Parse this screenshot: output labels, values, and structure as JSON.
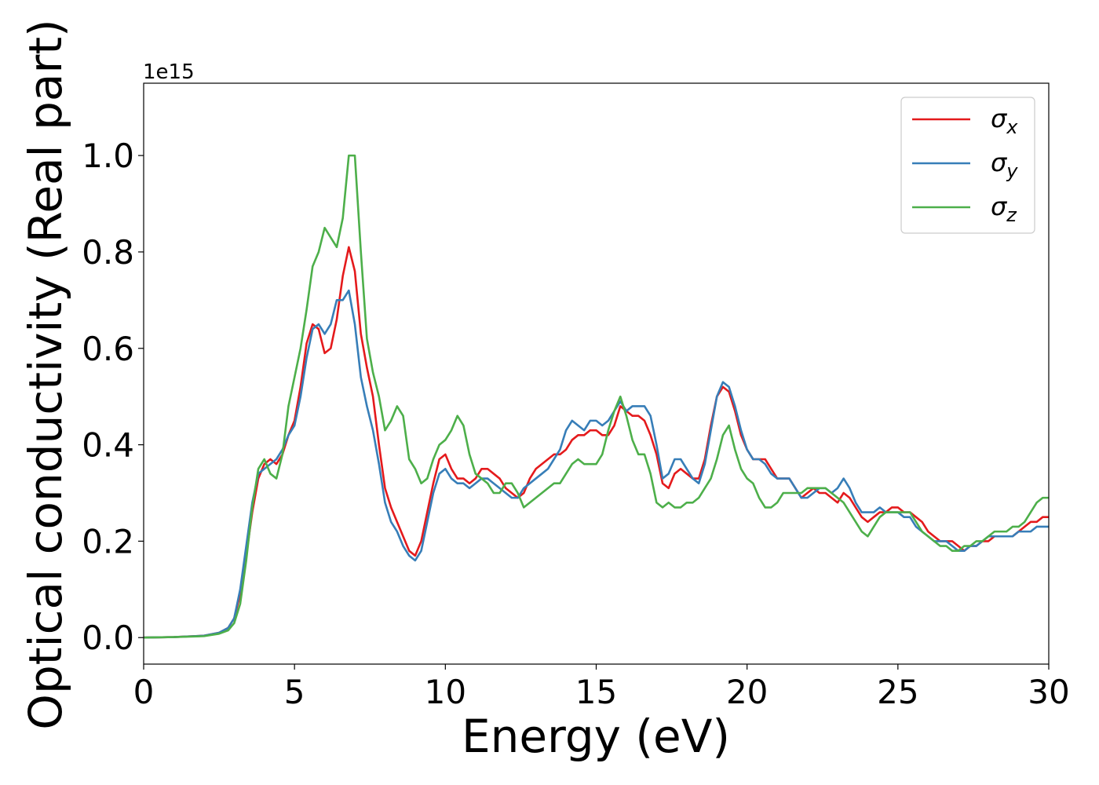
{
  "chart_data": {
    "type": "line",
    "xlabel": "Energy (eV)",
    "ylabel": "Optical conductivity (Real part)",
    "offset_label": "1e15",
    "xlim": [
      0,
      30
    ],
    "ylim": [
      -0.055,
      1.15
    ],
    "xticks": [
      0,
      5,
      10,
      15,
      20,
      25,
      30
    ],
    "xtick_labels": [
      "0",
      "5",
      "10",
      "15",
      "20",
      "25",
      "30"
    ],
    "yticks": [
      0.0,
      0.2,
      0.4,
      0.6,
      0.8,
      1.0
    ],
    "ytick_labels": [
      "0.0",
      "0.2",
      "0.4",
      "0.6",
      "0.8",
      "1.0"
    ],
    "legend_position": "upper right",
    "grid": false,
    "series": [
      {
        "name": "σx",
        "name_base": "σ",
        "name_sub": "x",
        "color": "#e41a1c",
        "x": [
          0,
          1,
          2,
          2.5,
          2.8,
          3.0,
          3.2,
          3.4,
          3.6,
          3.8,
          4.0,
          4.2,
          4.4,
          4.6,
          4.8,
          5.0,
          5.2,
          5.4,
          5.6,
          5.8,
          6.0,
          6.2,
          6.4,
          6.6,
          6.8,
          7.0,
          7.2,
          7.4,
          7.6,
          7.8,
          8.0,
          8.2,
          8.4,
          8.6,
          8.8,
          9.0,
          9.2,
          9.4,
          9.6,
          9.8,
          10.0,
          10.2,
          10.4,
          10.6,
          10.8,
          11.0,
          11.2,
          11.4,
          11.6,
          11.8,
          12.0,
          12.2,
          12.4,
          12.6,
          12.8,
          13.0,
          13.2,
          13.4,
          13.6,
          13.8,
          14.0,
          14.2,
          14.4,
          14.6,
          14.8,
          15.0,
          15.2,
          15.4,
          15.6,
          15.8,
          16.0,
          16.2,
          16.4,
          16.6,
          16.8,
          17.0,
          17.2,
          17.4,
          17.6,
          17.8,
          18.0,
          18.2,
          18.4,
          18.6,
          18.8,
          19.0,
          19.2,
          19.4,
          19.6,
          19.8,
          20.0,
          20.2,
          20.4,
          20.6,
          20.8,
          21.0,
          21.2,
          21.4,
          21.6,
          21.8,
          22.0,
          22.2,
          22.4,
          22.6,
          22.8,
          23.0,
          23.2,
          23.4,
          23.6,
          23.8,
          24.0,
          24.2,
          24.4,
          24.6,
          24.8,
          25.0,
          25.2,
          25.4,
          25.6,
          25.8,
          26.0,
          26.2,
          26.4,
          26.6,
          26.8,
          27.0,
          27.2,
          27.4,
          27.6,
          27.8,
          28.0,
          28.2,
          28.4,
          28.6,
          28.8,
          29.0,
          29.2,
          29.4,
          29.6,
          29.8,
          30.0
        ],
        "y": [
          0,
          0.001,
          0.004,
          0.01,
          0.02,
          0.04,
          0.09,
          0.17,
          0.26,
          0.33,
          0.36,
          0.37,
          0.36,
          0.38,
          0.42,
          0.45,
          0.52,
          0.61,
          0.65,
          0.64,
          0.59,
          0.6,
          0.66,
          0.75,
          0.81,
          0.76,
          0.63,
          0.56,
          0.5,
          0.4,
          0.31,
          0.27,
          0.24,
          0.21,
          0.18,
          0.17,
          0.2,
          0.26,
          0.32,
          0.37,
          0.38,
          0.35,
          0.33,
          0.33,
          0.32,
          0.33,
          0.35,
          0.35,
          0.34,
          0.33,
          0.31,
          0.3,
          0.29,
          0.3,
          0.33,
          0.35,
          0.36,
          0.37,
          0.38,
          0.38,
          0.39,
          0.41,
          0.42,
          0.42,
          0.43,
          0.43,
          0.42,
          0.42,
          0.44,
          0.48,
          0.47,
          0.46,
          0.46,
          0.45,
          0.42,
          0.38,
          0.32,
          0.31,
          0.34,
          0.35,
          0.34,
          0.33,
          0.33,
          0.37,
          0.44,
          0.5,
          0.52,
          0.51,
          0.47,
          0.42,
          0.39,
          0.37,
          0.37,
          0.37,
          0.35,
          0.33,
          0.33,
          0.33,
          0.31,
          0.29,
          0.3,
          0.31,
          0.3,
          0.3,
          0.29,
          0.28,
          0.3,
          0.29,
          0.27,
          0.25,
          0.24,
          0.25,
          0.26,
          0.26,
          0.27,
          0.27,
          0.26,
          0.26,
          0.25,
          0.24,
          0.22,
          0.21,
          0.2,
          0.2,
          0.2,
          0.19,
          0.18,
          0.19,
          0.19,
          0.2,
          0.2,
          0.21,
          0.21,
          0.21,
          0.21,
          0.22,
          0.23,
          0.24,
          0.24,
          0.25,
          0.25
        ]
      },
      {
        "name": "σy",
        "name_base": "σ",
        "name_sub": "y",
        "color": "#377eb8",
        "x": [
          0,
          1,
          2,
          2.5,
          2.8,
          3.0,
          3.2,
          3.4,
          3.6,
          3.8,
          4.0,
          4.2,
          4.4,
          4.6,
          4.8,
          5.0,
          5.2,
          5.4,
          5.6,
          5.8,
          6.0,
          6.2,
          6.4,
          6.6,
          6.8,
          7.0,
          7.2,
          7.4,
          7.6,
          7.8,
          8.0,
          8.2,
          8.4,
          8.6,
          8.8,
          9.0,
          9.2,
          9.4,
          9.6,
          9.8,
          10.0,
          10.2,
          10.4,
          10.6,
          10.8,
          11.0,
          11.2,
          11.4,
          11.6,
          11.8,
          12.0,
          12.2,
          12.4,
          12.6,
          12.8,
          13.0,
          13.2,
          13.4,
          13.6,
          13.8,
          14.0,
          14.2,
          14.4,
          14.6,
          14.8,
          15.0,
          15.2,
          15.4,
          15.6,
          15.8,
          16.0,
          16.2,
          16.4,
          16.6,
          16.8,
          17.0,
          17.2,
          17.4,
          17.6,
          17.8,
          18.0,
          18.2,
          18.4,
          18.6,
          18.8,
          19.0,
          19.2,
          19.4,
          19.6,
          19.8,
          20.0,
          20.2,
          20.4,
          20.6,
          20.8,
          21.0,
          21.2,
          21.4,
          21.6,
          21.8,
          22.0,
          22.2,
          22.4,
          22.6,
          22.8,
          23.0,
          23.2,
          23.4,
          23.6,
          23.8,
          24.0,
          24.2,
          24.4,
          24.6,
          24.8,
          25.0,
          25.2,
          25.4,
          25.6,
          25.8,
          26.0,
          26.2,
          26.4,
          26.6,
          26.8,
          27.0,
          27.2,
          27.4,
          27.6,
          27.8,
          28.0,
          28.2,
          28.4,
          28.6,
          28.8,
          29.0,
          29.2,
          29.4,
          29.6,
          29.8,
          30.0
        ],
        "y": [
          0,
          0.001,
          0.004,
          0.01,
          0.02,
          0.04,
          0.1,
          0.19,
          0.28,
          0.34,
          0.35,
          0.36,
          0.37,
          0.39,
          0.42,
          0.44,
          0.5,
          0.58,
          0.64,
          0.65,
          0.63,
          0.65,
          0.7,
          0.7,
          0.72,
          0.65,
          0.54,
          0.48,
          0.43,
          0.36,
          0.28,
          0.24,
          0.22,
          0.19,
          0.17,
          0.16,
          0.18,
          0.24,
          0.3,
          0.34,
          0.35,
          0.33,
          0.32,
          0.32,
          0.31,
          0.32,
          0.33,
          0.33,
          0.32,
          0.31,
          0.3,
          0.29,
          0.29,
          0.31,
          0.32,
          0.33,
          0.34,
          0.35,
          0.37,
          0.39,
          0.43,
          0.45,
          0.44,
          0.43,
          0.45,
          0.45,
          0.44,
          0.45,
          0.47,
          0.49,
          0.47,
          0.48,
          0.48,
          0.48,
          0.46,
          0.4,
          0.33,
          0.34,
          0.37,
          0.37,
          0.35,
          0.33,
          0.32,
          0.36,
          0.43,
          0.5,
          0.53,
          0.52,
          0.48,
          0.43,
          0.39,
          0.37,
          0.37,
          0.36,
          0.34,
          0.33,
          0.33,
          0.33,
          0.31,
          0.29,
          0.29,
          0.3,
          0.31,
          0.31,
          0.3,
          0.31,
          0.33,
          0.31,
          0.28,
          0.26,
          0.26,
          0.26,
          0.27,
          0.26,
          0.26,
          0.26,
          0.25,
          0.25,
          0.23,
          0.22,
          0.21,
          0.2,
          0.2,
          0.2,
          0.19,
          0.18,
          0.18,
          0.19,
          0.19,
          0.2,
          0.21,
          0.21,
          0.21,
          0.21,
          0.21,
          0.22,
          0.22,
          0.22,
          0.23,
          0.23,
          0.23
        ]
      },
      {
        "name": "σz",
        "name_base": "σ",
        "name_sub": "z",
        "color": "#4daf4a",
        "x": [
          0,
          1,
          2,
          2.5,
          2.8,
          3.0,
          3.2,
          3.4,
          3.6,
          3.8,
          4.0,
          4.2,
          4.4,
          4.6,
          4.8,
          5.0,
          5.2,
          5.4,
          5.6,
          5.8,
          6.0,
          6.2,
          6.4,
          6.6,
          6.8,
          7.0,
          7.2,
          7.4,
          7.6,
          7.8,
          8.0,
          8.2,
          8.4,
          8.6,
          8.8,
          9.0,
          9.2,
          9.4,
          9.6,
          9.8,
          10.0,
          10.2,
          10.4,
          10.6,
          10.8,
          11.0,
          11.2,
          11.4,
          11.6,
          11.8,
          12.0,
          12.2,
          12.4,
          12.6,
          12.8,
          13.0,
          13.2,
          13.4,
          13.6,
          13.8,
          14.0,
          14.2,
          14.4,
          14.6,
          14.8,
          15.0,
          15.2,
          15.4,
          15.6,
          15.8,
          16.0,
          16.2,
          16.4,
          16.6,
          16.8,
          17.0,
          17.2,
          17.4,
          17.6,
          17.8,
          18.0,
          18.2,
          18.4,
          18.6,
          18.8,
          19.0,
          19.2,
          19.4,
          19.6,
          19.8,
          20.0,
          20.2,
          20.4,
          20.6,
          20.8,
          21.0,
          21.2,
          21.4,
          21.6,
          21.8,
          22.0,
          22.2,
          22.4,
          22.6,
          22.8,
          23.0,
          23.2,
          23.4,
          23.6,
          23.8,
          24.0,
          24.2,
          24.4,
          24.6,
          24.8,
          25.0,
          25.2,
          25.4,
          25.6,
          25.8,
          26.0,
          26.2,
          26.4,
          26.6,
          26.8,
          27.0,
          27.2,
          27.4,
          27.6,
          27.8,
          28.0,
          28.2,
          28.4,
          28.6,
          28.8,
          29.0,
          29.2,
          29.4,
          29.6,
          29.8,
          30.0
        ],
        "y": [
          0,
          0.001,
          0.003,
          0.008,
          0.015,
          0.03,
          0.07,
          0.16,
          0.27,
          0.35,
          0.37,
          0.34,
          0.33,
          0.38,
          0.48,
          0.54,
          0.6,
          0.68,
          0.77,
          0.8,
          0.85,
          0.83,
          0.81,
          0.87,
          1.0,
          1.0,
          0.8,
          0.62,
          0.55,
          0.5,
          0.43,
          0.45,
          0.48,
          0.46,
          0.37,
          0.35,
          0.32,
          0.33,
          0.37,
          0.4,
          0.41,
          0.43,
          0.46,
          0.44,
          0.38,
          0.34,
          0.33,
          0.32,
          0.3,
          0.3,
          0.32,
          0.32,
          0.3,
          0.27,
          0.28,
          0.29,
          0.3,
          0.31,
          0.32,
          0.32,
          0.34,
          0.36,
          0.37,
          0.36,
          0.36,
          0.36,
          0.38,
          0.43,
          0.47,
          0.5,
          0.46,
          0.41,
          0.38,
          0.38,
          0.34,
          0.28,
          0.27,
          0.28,
          0.27,
          0.27,
          0.28,
          0.28,
          0.29,
          0.31,
          0.33,
          0.37,
          0.42,
          0.44,
          0.39,
          0.35,
          0.33,
          0.32,
          0.29,
          0.27,
          0.27,
          0.28,
          0.3,
          0.3,
          0.3,
          0.3,
          0.31,
          0.31,
          0.31,
          0.31,
          0.3,
          0.29,
          0.28,
          0.26,
          0.24,
          0.22,
          0.21,
          0.23,
          0.25,
          0.26,
          0.26,
          0.26,
          0.26,
          0.26,
          0.24,
          0.22,
          0.21,
          0.2,
          0.19,
          0.19,
          0.18,
          0.18,
          0.19,
          0.19,
          0.2,
          0.2,
          0.21,
          0.22,
          0.22,
          0.22,
          0.23,
          0.23,
          0.24,
          0.26,
          0.28,
          0.29,
          0.29
        ]
      }
    ]
  }
}
